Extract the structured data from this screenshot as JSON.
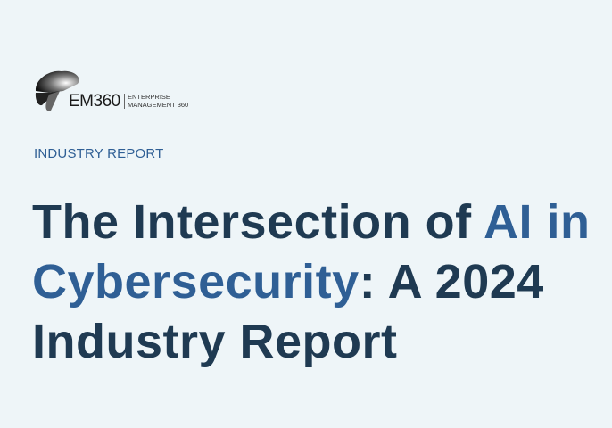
{
  "logo": {
    "brand": "EM360",
    "subtitle_line1": "ENTERPRISE",
    "subtitle_line2": "MANAGEMENT 360"
  },
  "kicker": "INDUSTRY REPORT",
  "title": {
    "part1": "The Intersection of ",
    "accent1": "AI in",
    "accent2": "Cybersecurity",
    "part2": ": A 2024",
    "part3": "Industry Report"
  },
  "colors": {
    "background": "#eef5f8",
    "title": "#1f3a52",
    "accent": "#2f5f95"
  }
}
